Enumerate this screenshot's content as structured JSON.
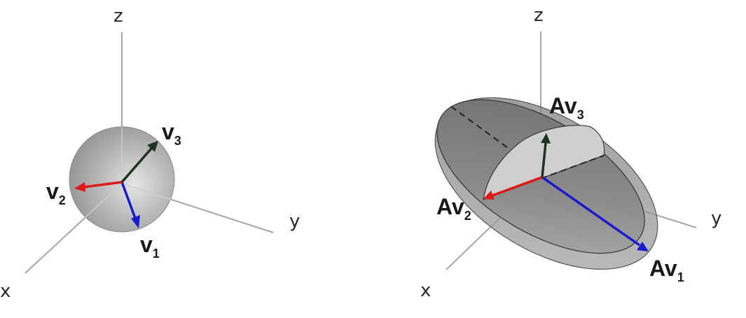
{
  "figure_left": {
    "axes": {
      "x": "x",
      "y": "y",
      "z": "z"
    },
    "shape": "sphere",
    "vectors": [
      {
        "id": "v1",
        "base": "v",
        "sub": "1",
        "color": "#1a1acc"
      },
      {
        "id": "v2",
        "base": "v",
        "sub": "2",
        "color": "#dd1a1a"
      },
      {
        "id": "v3",
        "base": "v",
        "sub": "3",
        "color": "#1f3322"
      }
    ]
  },
  "figure_right": {
    "axes": {
      "x": "x",
      "y": "y",
      "z": "z"
    },
    "shape": "ellipsoid",
    "vectors": [
      {
        "id": "Av1",
        "base": "Av",
        "sub": "1",
        "color": "#1a1acc"
      },
      {
        "id": "Av2",
        "base": "Av",
        "sub": "2",
        "color": "#dd1a1a"
      },
      {
        "id": "Av3",
        "base": "Av",
        "sub": "3",
        "color": "#1f3322"
      }
    ]
  }
}
